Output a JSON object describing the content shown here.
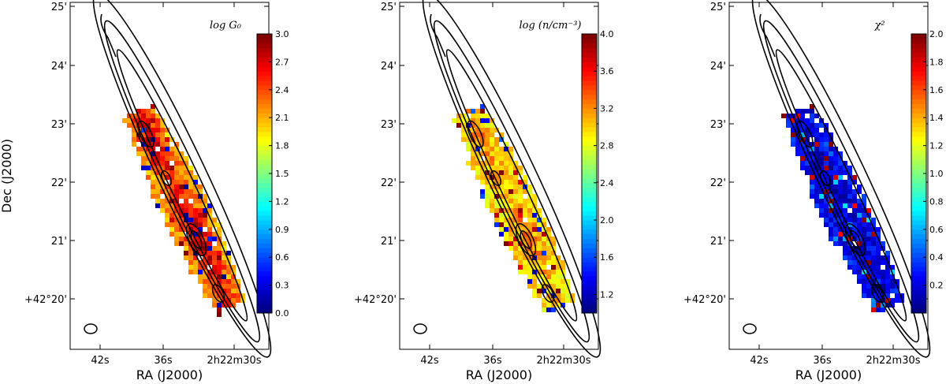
{
  "chart_data": [
    {
      "type": "heatmap",
      "panel_label": "log G₀",
      "colorbar": {
        "min": 0.0,
        "max": 3.0,
        "ticks": [
          "0.0",
          "0.3",
          "0.6",
          "0.9",
          "1.2",
          "1.5",
          "1.8",
          "2.1",
          "2.4",
          "2.7",
          "3.0"
        ],
        "tick_values": [
          0.0,
          0.3,
          0.6,
          0.9,
          1.2,
          1.5,
          1.8,
          2.1,
          2.4,
          2.7,
          3.0
        ]
      },
      "map_profile": {
        "base": 2.3,
        "peak": 2.95,
        "edge": 1.8,
        "noise_lo": 0.0,
        "noise_hi": 3.0
      }
    },
    {
      "type": "heatmap",
      "panel_label": "log (n/cm⁻³)",
      "colorbar": {
        "min": 1.0,
        "max": 4.0,
        "ticks": [
          "1.2",
          "1.6",
          "2.0",
          "2.4",
          "2.8",
          "3.2",
          "3.6",
          "4.0"
        ],
        "tick_values": [
          1.2,
          1.6,
          2.0,
          2.4,
          2.8,
          3.2,
          3.6,
          4.0
        ]
      },
      "map_profile": {
        "base": 2.85,
        "peak": 3.3,
        "edge": 3.1,
        "noise_lo": 1.2,
        "noise_hi": 4.0
      }
    },
    {
      "type": "heatmap",
      "panel_label": "χ²",
      "colorbar": {
        "min": 0.0,
        "max": 2.0,
        "ticks": [
          "0.2",
          "0.4",
          "0.6",
          "0.8",
          "1.0",
          "1.2",
          "1.4",
          "1.6",
          "1.8",
          "2.0"
        ],
        "tick_values": [
          0.2,
          0.4,
          0.6,
          0.8,
          1.0,
          1.2,
          1.4,
          1.6,
          1.8,
          2.0
        ]
      },
      "map_profile": {
        "base": 0.05,
        "peak": 0.2,
        "edge": 0.6,
        "noise_lo": 0.3,
        "noise_hi": 2.0
      }
    }
  ],
  "axes": {
    "xlabel": "RA (J2000)",
    "ylabel": "Dec (J2000)",
    "x_ticks": [
      "42s",
      "36s",
      "2h22m30s"
    ],
    "y_ticks": [
      "25'",
      "24'",
      "23'",
      "22'",
      "21'",
      "+42°20'"
    ]
  },
  "colors": {
    "contour": "#000000",
    "frame": "#000000"
  }
}
